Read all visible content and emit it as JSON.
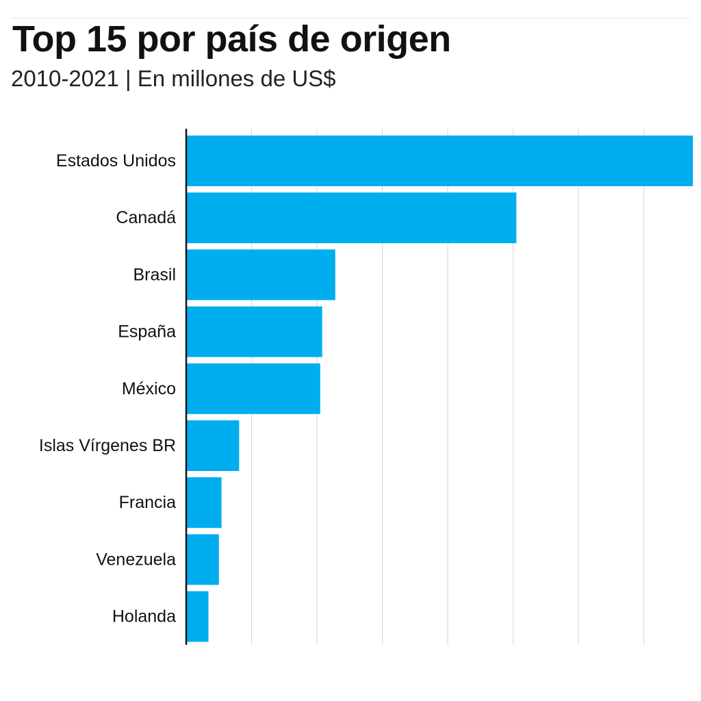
{
  "title": "Top 15 por país de origen",
  "subtitle": "2010-2021 | En millones de US$",
  "chart_data": {
    "type": "bar",
    "orientation": "horizontal",
    "title": "Top 15 por país de origen",
    "subtitle": "2010-2021 | En millones de US$",
    "categories": [
      "Estados Unidos",
      "Canadá",
      "Brasil",
      "España",
      "México",
      "Islas Vírgenes BR",
      "Francia",
      "Venezuela",
      "Holanda"
    ],
    "values": [
      7.75,
      5.05,
      2.28,
      2.08,
      2.05,
      0.81,
      0.54,
      0.5,
      0.34
    ],
    "value_units": "gridline intervals (no tick labels printed)",
    "xlim": [
      0,
      7.75
    ],
    "gridlines": [
      1,
      2,
      3,
      4,
      5,
      6,
      7
    ],
    "grid": true,
    "bar_color": "#00adef",
    "xlabel": "",
    "ylabel": ""
  }
}
